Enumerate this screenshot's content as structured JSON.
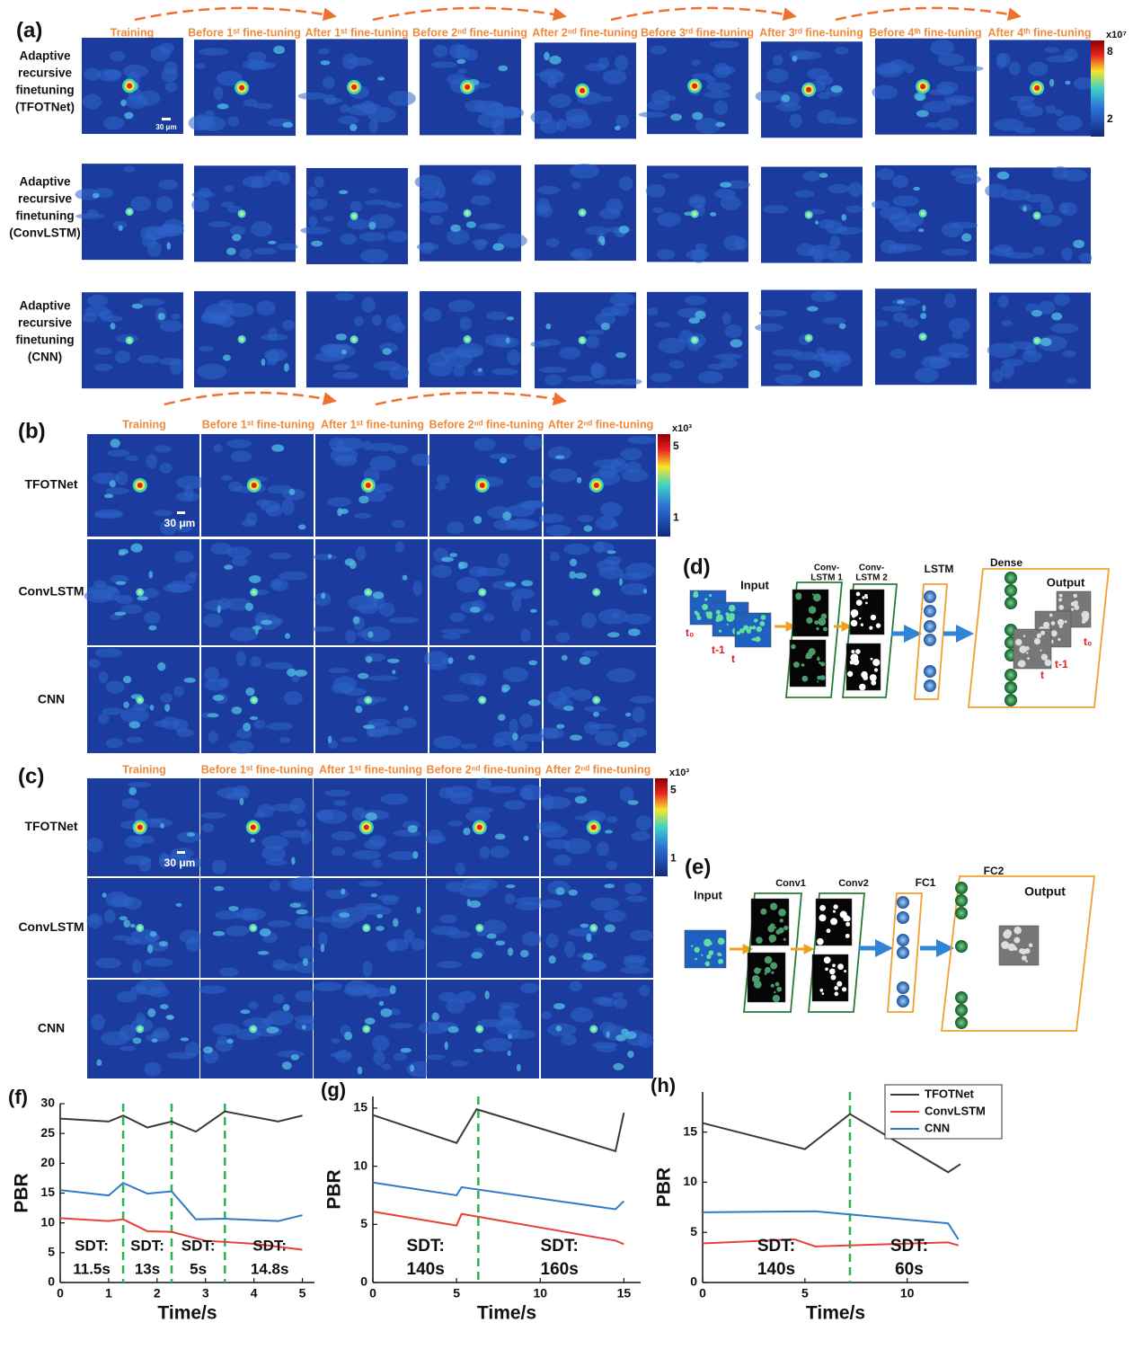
{
  "panels": {
    "a": {
      "label": "(a)",
      "columns": [
        "Training",
        "Before 1ˢᵗ fine-tuning",
        "After 1ˢᵗ fine-tuning",
        "Before 2ⁿᵈ fine-tuning",
        "After 2ⁿᵈ fine-tuning",
        "Before 3ʳᵈ fine-tuning",
        "After 3ʳᵈ fine-tuning",
        "Before 4ᵗʰ fine-tuning",
        "After 4ᵗʰ fine-tuning"
      ],
      "rows": [
        [
          "Adaptive",
          "recursive",
          "finetuning",
          "(TFOTNet)"
        ],
        [
          "Adaptive",
          "recursive",
          "finetuning",
          "(ConvLSTM)"
        ],
        [
          "Adaptive",
          "recursive",
          "finetuning",
          "(CNN)"
        ]
      ],
      "colorbar": {
        "unit": "x10⁷",
        "max": "8",
        "min": "2"
      },
      "scale_bar": "30 μm"
    },
    "b": {
      "label": "(b)",
      "columns": [
        "Training",
        "Before 1ˢᵗ fine-tuning",
        "After 1ˢᵗ fine-tuning",
        "Before 2ⁿᵈ fine-tuning",
        "After 2ⁿᵈ fine-tuning"
      ],
      "rows": [
        "TFOTNet",
        "ConvLSTM",
        "CNN"
      ],
      "colorbar": {
        "unit": "x10³",
        "max": "5",
        "min": "1"
      },
      "scale_bar": "30 μm"
    },
    "c": {
      "label": "(c)",
      "columns": [
        "Training",
        "Before 1ˢᵗ fine-tuning",
        "After 1ˢᵗ fine-tuning",
        "Before 2ⁿᵈ fine-tuning",
        "After 2ⁿᵈ fine-tuning"
      ],
      "rows": [
        "TFOTNet",
        "ConvLSTM",
        "CNN"
      ],
      "colorbar": {
        "unit": "x10³",
        "max": "5",
        "min": "1"
      },
      "scale_bar": "30 μm"
    },
    "d": {
      "label": "(d)",
      "input": "Input",
      "layers": [
        [
          "Conv-",
          "LSTM 1"
        ],
        [
          "Conv-",
          "LSTM 2"
        ],
        [
          "LSTM"
        ],
        [
          "Dense"
        ]
      ],
      "output": "Output",
      "times": [
        "t₀",
        "t-1",
        "t"
      ]
    },
    "e": {
      "label": "(e)",
      "input": "Input",
      "layers": [
        "Conv1",
        "Conv2",
        "FC1",
        "FC2"
      ],
      "output": "Output"
    }
  },
  "chart_data": [
    {
      "type": "line",
      "panel": "(f)",
      "x_label": "Time/s",
      "y_label": "PBR",
      "xlim": [
        0,
        5.25
      ],
      "xticks": [
        0,
        1,
        2,
        3,
        4,
        5
      ],
      "ylim": [
        0,
        30
      ],
      "yticks": [
        0,
        5,
        10,
        15,
        20,
        25,
        30
      ],
      "vlines": [
        1.3,
        2.3,
        3.4
      ],
      "annotations": [
        [
          "SDT:",
          "11.5s"
        ],
        [
          "SDT:",
          "13s"
        ],
        [
          "SDT:",
          "5s"
        ],
        [
          "SDT:",
          "14.8s"
        ]
      ],
      "series": [
        {
          "color": "#3a3a3a",
          "x": [
            0,
            1,
            1.3,
            1.8,
            2.3,
            2.8,
            3.4,
            4.5,
            5
          ],
          "values": [
            27.5,
            27,
            28,
            26,
            27,
            25.3,
            28.7,
            27,
            28
          ]
        },
        {
          "color": "#e8403a",
          "x": [
            0,
            1,
            1.3,
            1.8,
            2.3,
            3,
            4,
            5
          ],
          "values": [
            10.8,
            10.3,
            10.6,
            8.6,
            8.5,
            7,
            6.5,
            5.5
          ]
        },
        {
          "color": "#2f7ac8",
          "x": [
            0,
            1,
            1.3,
            1.8,
            2.3,
            2.8,
            3.4,
            4.5,
            5
          ],
          "values": [
            15.5,
            14.6,
            16.7,
            14.9,
            15.3,
            10.6,
            10.7,
            10.3,
            11.3
          ]
        }
      ]
    },
    {
      "type": "line",
      "panel": "(g)",
      "x_label": "Time/s",
      "y_label": "PBR",
      "xlim": [
        0,
        16
      ],
      "xticks": [
        0,
        5,
        10,
        15
      ],
      "ylim": [
        0,
        16
      ],
      "yticks": [
        0,
        5,
        10,
        15
      ],
      "vlines": [
        6.3
      ],
      "annotations": [
        [
          "SDT:",
          "140s"
        ],
        [
          "SDT:",
          "160s"
        ]
      ],
      "series": [
        {
          "color": "#3a3a3a",
          "x": [
            0,
            5,
            6.2,
            14.5,
            15
          ],
          "values": [
            14.4,
            12,
            14.9,
            11.3,
            14.6
          ]
        },
        {
          "color": "#e8403a",
          "x": [
            0,
            5,
            5.3,
            14.5,
            15
          ],
          "values": [
            6.1,
            4.9,
            5.9,
            3.6,
            3.3
          ]
        },
        {
          "color": "#2f7ac8",
          "x": [
            0,
            5,
            5.3,
            14.5,
            15
          ],
          "values": [
            8.6,
            7.5,
            8.2,
            6.3,
            7
          ]
        }
      ]
    },
    {
      "type": "line",
      "panel": "(h)",
      "x_label": "Time/s",
      "y_label": "PBR",
      "xlim": [
        0,
        13
      ],
      "xticks": [
        0,
        5,
        10
      ],
      "ylim": [
        0,
        19
      ],
      "yticks": [
        0,
        5,
        10,
        15
      ],
      "vlines": [
        7.2
      ],
      "annotations": [
        [
          "SDT:",
          "140s"
        ],
        [
          "SDT:",
          "60s"
        ]
      ],
      "legend": "upper right",
      "series": [
        {
          "name": "TFOTNet",
          "color": "#3a3a3a",
          "x": [
            0,
            5,
            7.2,
            12,
            12.6
          ],
          "values": [
            15.9,
            13.3,
            16.8,
            11,
            11.8
          ]
        },
        {
          "name": "ConvLSTM",
          "color": "#e8403a",
          "x": [
            0,
            4.5,
            5.5,
            12,
            12.5
          ],
          "values": [
            3.9,
            4.3,
            3.6,
            4,
            3.7
          ]
        },
        {
          "name": "CNN",
          "color": "#2f7ac8",
          "x": [
            0,
            5.5,
            12,
            12.5
          ],
          "values": [
            7,
            7.1,
            5.9,
            4.3
          ]
        }
      ]
    }
  ]
}
